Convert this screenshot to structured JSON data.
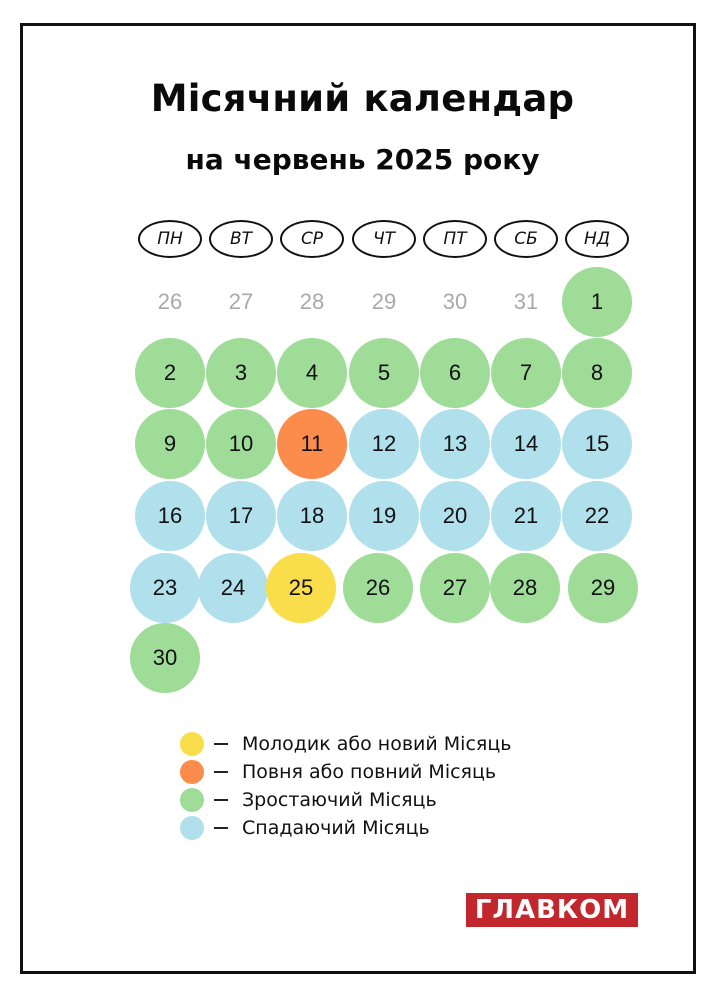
{
  "title": {
    "main": "Місячний календар",
    "sub": "на червень 2025 року"
  },
  "colors": {
    "new_moon": "#f9dd4a",
    "full_moon": "#fb8c4c",
    "waxing": "#9edc98",
    "waning": "#afe0ec",
    "prev_month_text": "#a9a9a9",
    "logo_red": "#c1272d"
  },
  "weekdays": [
    "ПН",
    "ВТ",
    "СР",
    "ЧТ",
    "ПТ",
    "СБ",
    "НД"
  ],
  "prev_month_days": [
    "26",
    "27",
    "28",
    "29",
    "30",
    "31"
  ],
  "days": [
    {
      "n": "1",
      "phase": "waxing"
    },
    {
      "n": "2",
      "phase": "waxing"
    },
    {
      "n": "3",
      "phase": "waxing"
    },
    {
      "n": "4",
      "phase": "waxing"
    },
    {
      "n": "5",
      "phase": "waxing"
    },
    {
      "n": "6",
      "phase": "waxing"
    },
    {
      "n": "7",
      "phase": "waxing"
    },
    {
      "n": "8",
      "phase": "waxing"
    },
    {
      "n": "9",
      "phase": "waxing"
    },
    {
      "n": "10",
      "phase": "waxing"
    },
    {
      "n": "11",
      "phase": "full_moon"
    },
    {
      "n": "12",
      "phase": "waning"
    },
    {
      "n": "13",
      "phase": "waning"
    },
    {
      "n": "14",
      "phase": "waning"
    },
    {
      "n": "15",
      "phase": "waning"
    },
    {
      "n": "16",
      "phase": "waning"
    },
    {
      "n": "17",
      "phase": "waning"
    },
    {
      "n": "18",
      "phase": "waning"
    },
    {
      "n": "19",
      "phase": "waning"
    },
    {
      "n": "20",
      "phase": "waning"
    },
    {
      "n": "21",
      "phase": "waning"
    },
    {
      "n": "22",
      "phase": "waning"
    },
    {
      "n": "23",
      "phase": "waning"
    },
    {
      "n": "24",
      "phase": "waning"
    },
    {
      "n": "25",
      "phase": "new_moon"
    },
    {
      "n": "26",
      "phase": "waxing"
    },
    {
      "n": "27",
      "phase": "waxing"
    },
    {
      "n": "28",
      "phase": "waxing"
    },
    {
      "n": "29",
      "phase": "waxing"
    },
    {
      "n": "30",
      "phase": "waxing"
    }
  ],
  "legend": [
    {
      "phase": "new_moon",
      "label": "Молодик або новий Місяць"
    },
    {
      "phase": "full_moon",
      "label": "Повня або повний Місяць"
    },
    {
      "phase": "waxing",
      "label": "Зростаючий Місяць"
    },
    {
      "phase": "waning",
      "label": "Спадаючий Місяць"
    }
  ],
  "logo": {
    "text": "ГЛАВКОМ"
  }
}
